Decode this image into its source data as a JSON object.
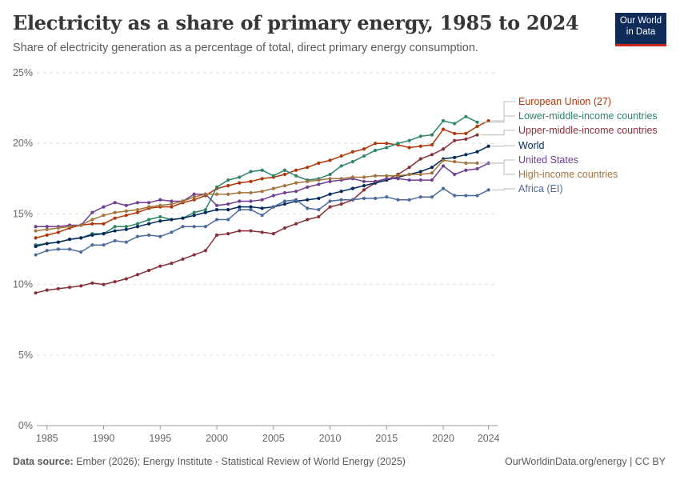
{
  "header": {
    "title": "Electricity as a share of primary energy, 1985 to 2024",
    "subtitle": "Share of electricity generation as a percentage of total, direct primary energy consumption."
  },
  "logo": {
    "line1": "Our World",
    "line2": "in Data",
    "bg": "#0f2b57",
    "accent": "#ce261e"
  },
  "footer": {
    "source_label": "Data source:",
    "source_text": " Ember (2026); Energy Institute - Statistical Review of World Energy (2025)",
    "credit": "OurWorldinData.org/energy | CC BY"
  },
  "chart_data": {
    "type": "line",
    "xlim": [
      1984.1,
      2024.8
    ],
    "ylim": [
      0,
      25
    ],
    "y_ticks": [
      0,
      5,
      10,
      15,
      20,
      25
    ],
    "y_tick_labels": [
      "0%",
      "5%",
      "10%",
      "15%",
      "20%",
      "25%"
    ],
    "x_ticks": [
      1985,
      1990,
      1995,
      2000,
      2005,
      2010,
      2015,
      2020,
      2024
    ],
    "x_tick_labels": [
      "1985",
      "1990",
      "1995",
      "2000",
      "2005",
      "2010",
      "2015",
      "2020",
      "2024"
    ],
    "grid": true,
    "legend": "right (end labels)",
    "x": [
      1984,
      1985,
      1986,
      1987,
      1988,
      1989,
      1990,
      1991,
      1992,
      1993,
      1994,
      1995,
      1996,
      1997,
      1998,
      1999,
      2000,
      2001,
      2002,
      2003,
      2004,
      2005,
      2006,
      2007,
      2008,
      2009,
      2010,
      2011,
      2012,
      2013,
      2014,
      2015,
      2016,
      2017,
      2018,
      2019,
      2020,
      2021,
      2022,
      2023,
      2024
    ],
    "series": [
      {
        "name": "European Union (27)",
        "color": "#b13507",
        "values": [
          13.3,
          13.5,
          13.7,
          14.0,
          14.2,
          14.3,
          14.3,
          14.7,
          14.9,
          15.1,
          15.4,
          15.5,
          15.5,
          15.8,
          16.0,
          16.3,
          16.8,
          17.0,
          17.2,
          17.3,
          17.5,
          17.6,
          17.8,
          18.1,
          18.3,
          18.6,
          18.8,
          19.1,
          19.4,
          19.6,
          20.0,
          20.0,
          19.9,
          19.7,
          19.8,
          19.9,
          21.0,
          20.7,
          20.7,
          21.2,
          21.6
        ]
      },
      {
        "name": "Lower-middle-income countries",
        "color": "#2d8565",
        "values": [
          12.8,
          12.9,
          13.0,
          13.2,
          13.3,
          13.6,
          13.6,
          14.1,
          14.1,
          14.3,
          14.6,
          14.8,
          14.6,
          14.7,
          15.1,
          15.3,
          16.9,
          17.4,
          17.6,
          18.0,
          18.1,
          17.7,
          18.1,
          17.7,
          17.4,
          17.5,
          17.8,
          18.4,
          18.7,
          19.1,
          19.5,
          19.7,
          20.0,
          20.2,
          20.5,
          20.6,
          21.6,
          21.4,
          21.9,
          21.5,
          null
        ]
      },
      {
        "name": "Upper-middle-income countries",
        "color": "#883039",
        "values": [
          9.4,
          9.6,
          9.7,
          9.8,
          9.9,
          10.1,
          10.0,
          10.2,
          10.4,
          10.7,
          11.0,
          11.3,
          11.5,
          11.8,
          12.1,
          12.4,
          13.5,
          13.6,
          13.8,
          13.8,
          13.7,
          13.6,
          14.0,
          14.3,
          14.6,
          14.8,
          15.5,
          15.7,
          16.0,
          16.7,
          17.2,
          17.4,
          17.8,
          18.3,
          18.9,
          19.2,
          19.6,
          20.2,
          20.3,
          20.6,
          null
        ]
      },
      {
        "name": "World",
        "color": "#00295b",
        "values": [
          12.7,
          12.9,
          13.0,
          13.2,
          13.3,
          13.5,
          13.6,
          13.8,
          13.9,
          14.1,
          14.3,
          14.5,
          14.6,
          14.7,
          14.9,
          15.1,
          15.3,
          15.3,
          15.5,
          15.5,
          15.4,
          15.5,
          15.7,
          15.9,
          16.0,
          16.1,
          16.4,
          16.6,
          16.8,
          17.0,
          17.2,
          17.4,
          17.6,
          17.8,
          18.0,
          18.3,
          18.9,
          19.0,
          19.2,
          19.4,
          19.8
        ]
      },
      {
        "name": "United States",
        "color": "#6d3e91",
        "values": [
          14.1,
          14.1,
          14.1,
          14.2,
          14.2,
          15.1,
          15.5,
          15.8,
          15.6,
          15.8,
          15.8,
          16.0,
          15.9,
          15.9,
          16.4,
          16.4,
          15.6,
          15.7,
          15.9,
          15.9,
          16.0,
          16.3,
          16.5,
          16.6,
          16.9,
          17.1,
          17.3,
          17.4,
          17.5,
          17.3,
          17.3,
          17.5,
          17.5,
          17.4,
          17.4,
          17.4,
          18.4,
          17.8,
          18.1,
          18.2,
          18.6
        ]
      },
      {
        "name": "High-income countries",
        "color": "#a2733a",
        "values": [
          13.8,
          13.9,
          14.0,
          14.1,
          14.2,
          14.6,
          14.9,
          15.1,
          15.2,
          15.3,
          15.5,
          15.6,
          15.7,
          15.9,
          16.2,
          16.4,
          16.4,
          16.4,
          16.5,
          16.5,
          16.6,
          16.8,
          17.0,
          17.2,
          17.3,
          17.4,
          17.5,
          17.5,
          17.6,
          17.6,
          17.7,
          17.7,
          17.7,
          17.8,
          17.8,
          17.9,
          18.8,
          18.7,
          18.6,
          18.6,
          null
        ]
      },
      {
        "name": "Africa (EI)",
        "color": "#4c6a9c",
        "values": [
          12.1,
          12.4,
          12.5,
          12.5,
          12.3,
          12.8,
          12.8,
          13.1,
          13.0,
          13.4,
          13.5,
          13.4,
          13.7,
          14.1,
          14.1,
          14.1,
          14.6,
          14.6,
          15.3,
          15.3,
          14.9,
          15.5,
          15.9,
          16.0,
          15.4,
          15.3,
          15.9,
          16.0,
          16.0,
          16.1,
          16.1,
          16.2,
          16.0,
          16.0,
          16.2,
          16.2,
          16.8,
          16.3,
          16.3,
          16.3,
          16.7
        ]
      }
    ]
  }
}
